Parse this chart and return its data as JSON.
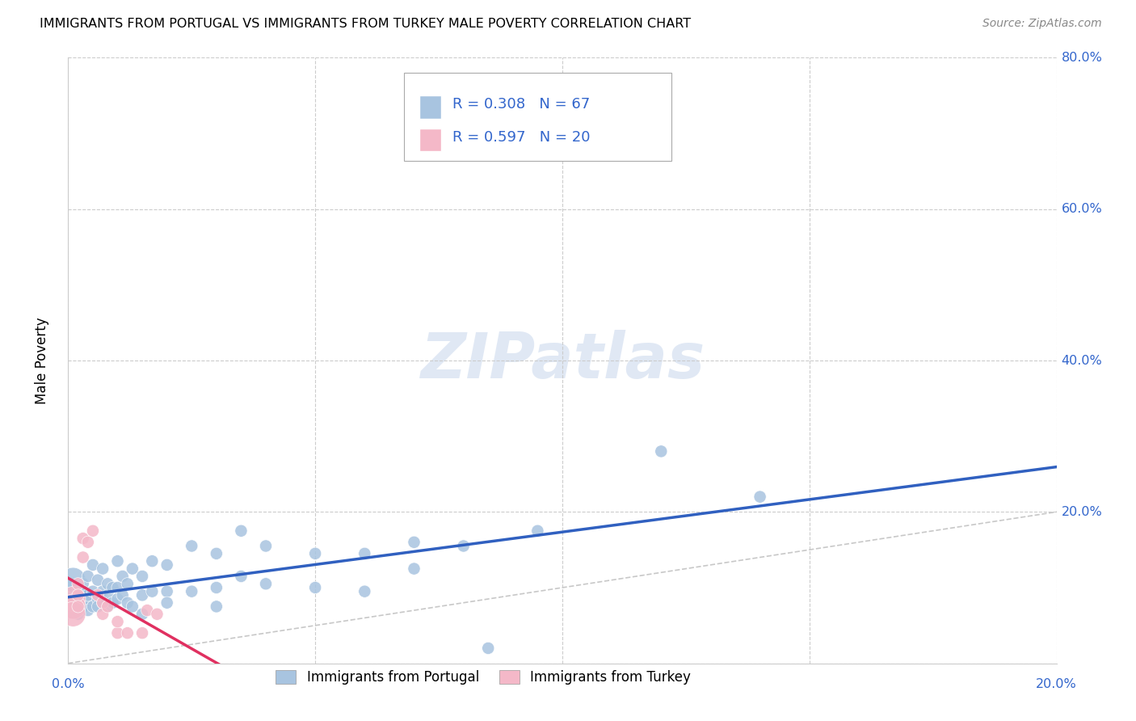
{
  "title": "IMMIGRANTS FROM PORTUGAL VS IMMIGRANTS FROM TURKEY MALE POVERTY CORRELATION CHART",
  "source": "Source: ZipAtlas.com",
  "ylabel": "Male Poverty",
  "xlim": [
    0.0,
    0.2
  ],
  "ylim": [
    0.0,
    0.8
  ],
  "x_ticks": [
    0.0,
    0.05,
    0.1,
    0.15,
    0.2
  ],
  "y_ticks": [
    0.0,
    0.2,
    0.4,
    0.6,
    0.8
  ],
  "y_tick_labels": [
    "",
    "20.0%",
    "40.0%",
    "60.0%",
    "80.0%"
  ],
  "x_tick_labels_show": [
    "0.0%",
    "20.0%"
  ],
  "x_tick_labels_pos": [
    0.0,
    0.2
  ],
  "portugal_color": "#a8c4e0",
  "turkey_color": "#f4b8c8",
  "portugal_line_color": "#3060c0",
  "turkey_line_color": "#e03060",
  "diagonal_color": "#c8c8c8",
  "R_portugal": 0.308,
  "N_portugal": 67,
  "R_turkey": 0.597,
  "N_turkey": 20,
  "portugal_scatter": [
    [
      0.001,
      0.075
    ],
    [
      0.001,
      0.085
    ],
    [
      0.001,
      0.095
    ],
    [
      0.001,
      0.11
    ],
    [
      0.002,
      0.08
    ],
    [
      0.002,
      0.09
    ],
    [
      0.002,
      0.1
    ],
    [
      0.002,
      0.065
    ],
    [
      0.003,
      0.085
    ],
    [
      0.003,
      0.105
    ],
    [
      0.003,
      0.075
    ],
    [
      0.003,
      0.095
    ],
    [
      0.004,
      0.115
    ],
    [
      0.004,
      0.08
    ],
    [
      0.004,
      0.09
    ],
    [
      0.004,
      0.07
    ],
    [
      0.005,
      0.13
    ],
    [
      0.005,
      0.095
    ],
    [
      0.005,
      0.075
    ],
    [
      0.006,
      0.11
    ],
    [
      0.006,
      0.085
    ],
    [
      0.006,
      0.075
    ],
    [
      0.007,
      0.125
    ],
    [
      0.007,
      0.095
    ],
    [
      0.007,
      0.08
    ],
    [
      0.008,
      0.105
    ],
    [
      0.008,
      0.09
    ],
    [
      0.008,
      0.075
    ],
    [
      0.009,
      0.1
    ],
    [
      0.009,
      0.08
    ],
    [
      0.01,
      0.135
    ],
    [
      0.01,
      0.1
    ],
    [
      0.01,
      0.085
    ],
    [
      0.011,
      0.115
    ],
    [
      0.011,
      0.09
    ],
    [
      0.012,
      0.105
    ],
    [
      0.012,
      0.08
    ],
    [
      0.013,
      0.125
    ],
    [
      0.013,
      0.075
    ],
    [
      0.015,
      0.115
    ],
    [
      0.015,
      0.09
    ],
    [
      0.015,
      0.065
    ],
    [
      0.017,
      0.135
    ],
    [
      0.017,
      0.095
    ],
    [
      0.02,
      0.13
    ],
    [
      0.02,
      0.095
    ],
    [
      0.02,
      0.08
    ],
    [
      0.025,
      0.155
    ],
    [
      0.025,
      0.095
    ],
    [
      0.03,
      0.145
    ],
    [
      0.03,
      0.1
    ],
    [
      0.03,
      0.075
    ],
    [
      0.035,
      0.175
    ],
    [
      0.035,
      0.115
    ],
    [
      0.04,
      0.155
    ],
    [
      0.04,
      0.105
    ],
    [
      0.05,
      0.145
    ],
    [
      0.05,
      0.1
    ],
    [
      0.06,
      0.145
    ],
    [
      0.06,
      0.095
    ],
    [
      0.07,
      0.16
    ],
    [
      0.07,
      0.125
    ],
    [
      0.08,
      0.155
    ],
    [
      0.085,
      0.02
    ],
    [
      0.095,
      0.175
    ],
    [
      0.12,
      0.28
    ],
    [
      0.14,
      0.22
    ]
  ],
  "turkey_scatter": [
    [
      0.001,
      0.085
    ],
    [
      0.001,
      0.075
    ],
    [
      0.001,
      0.065
    ],
    [
      0.002,
      0.105
    ],
    [
      0.002,
      0.09
    ],
    [
      0.002,
      0.075
    ],
    [
      0.003,
      0.165
    ],
    [
      0.003,
      0.14
    ],
    [
      0.004,
      0.16
    ],
    [
      0.005,
      0.175
    ],
    [
      0.006,
      0.09
    ],
    [
      0.007,
      0.08
    ],
    [
      0.007,
      0.065
    ],
    [
      0.008,
      0.075
    ],
    [
      0.01,
      0.04
    ],
    [
      0.01,
      0.055
    ],
    [
      0.012,
      0.04
    ],
    [
      0.015,
      0.04
    ],
    [
      0.016,
      0.07
    ],
    [
      0.018,
      0.065
    ]
  ],
  "portugal_marker_size": 120,
  "turkey_marker_size": 120,
  "portugal_large_size": 500,
  "watermark": "ZIPatlas",
  "legend_color": "#3366cc",
  "legend_text_color": "#3366cc"
}
